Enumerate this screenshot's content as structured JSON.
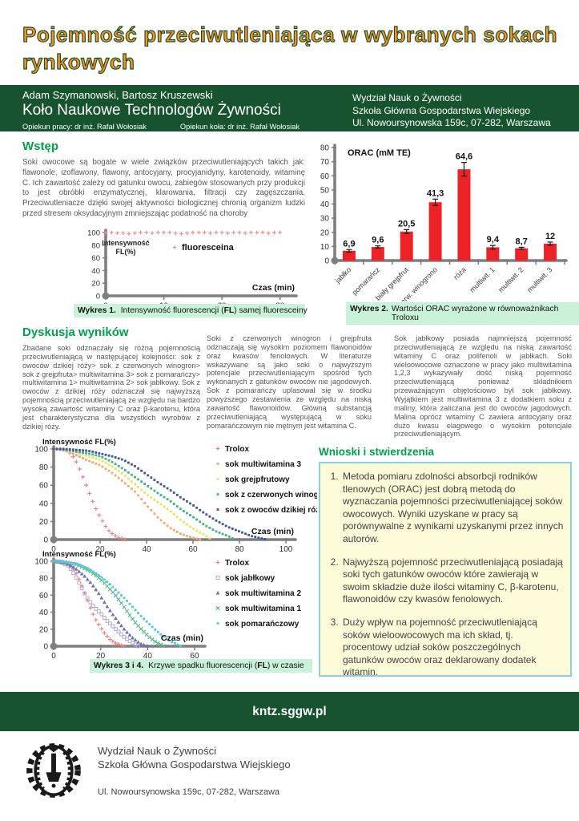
{
  "title": {
    "line1_words": [
      "Pojemność",
      "przeciwutleniająca",
      "w",
      "wybranych",
      "sokach"
    ],
    "line2": "rynkowych"
  },
  "header": {
    "authors": "Adam Szymanowski, Bartosz Kruszewski",
    "club": "Koło Naukowe Technologów Żywności",
    "supervisor1": "Opiekun pracy: dr inż. Rafał Wołosiak",
    "supervisor2": "Opiekun koła: dr inż. Rafał Wołosiak",
    "faculty": "Wydział Nauk o Żywności",
    "university": "Szkoła Główna Gospodarstwa Wiejskiego",
    "address": "Ul. Nowoursynowska 159c, 07-282, Warszawa"
  },
  "wstep": {
    "heading": "Wstęp",
    "text": "Soki owocowe są bogate w wiele związków przeciwutleniających takich jak: flawonole, izoflawony, flawony, antocyjany, procyjanidyny, karotenoidy, witaminę C. Ich zawartość zależy od gatunku owocu, zabiegów stosowanych przy produkcji to jest obróbki enzymatycznej, klarowania, filtracji czy zagęszczania. Przeciwutleniacze dzięki swojej aktywności biologicznej chronią organizm ludzki przed stresem oksydacyjnym zmniejszając podatność na choroby"
  },
  "dyskusja": {
    "heading": "Dyskusja wyników",
    "col1": "Zbadane soki odznaczały się różną pojemnością przeciwutleniającą w następującej kolejności: sok z owoców dzikiej róży> sok z czerwonych winogron> sok z grejpfruta> multiwitamina 3> sok z pomarańczy> multiwitamina 1> multiwitamina 2> sok jabłkowy. Sok z owoców z dzikiej róży odznaczał się najwyższą pojemnością przeciwutleniającą ze względu na bardzo wysoką zawartość witaminy C oraz β-karotenu, która jest charakterystyczna dla wszystkich wyrobów z dzikiej róży.",
    "col2": "Soki z czerwonych winogron i grejpfruta odznaczają się wysokim poziomem flawonoidów oraz kwasów fenolowych. W literaturze wskazywane są jako soki o najwyższym potencjale przeciwutleniającym spośród tych wykonanych z gatunków owoców nie jagodowych. Sok z pomarańczy uplasował się w środku powyższego zestawienia ze względu na niską zawartość flawonoidów. Główną substancją przeciwutleniającą występującą w soku pomarańczowym nie mętnym jest witamina C.",
    "col3": "Sok jabłkowy posiada najmniejszą pojemność przeciwutleniającą ze względu na niską zawartość witaminy C oraz polifenoli w jabłkach. Soki wieloowocowe oznaczone w pracy jako multiwitamina 1,2,3 wykazywały dość niską pojemność przeciwutleniającą ponieważ składnikiem przeważającym objętościowo był sok jabłkowy. Wyjątkiem jest multiwitamina 3 z dodatkiem soku z maliny, która zaliczana jest do owoców jagodowych. Malina oprócz witaminy C zawiera antocyjany oraz dużo kwasu elagowego o wysokim potencjale przeciwutleniającym."
  },
  "wnioski": {
    "heading": "Wnioski i stwierdzenia",
    "items": [
      "Metoda pomiaru zdolności absorbcji rodników tlenowych (ORAC) jest dobrą metodą do wyznaczania pojemności przeciwutleniającej soków owocowych. Wyniki uzyskane w pracy są porównywalne z wynikami uzyskanymi przez innych autorów.",
      "Najwyższą pojemność przeciwutleniającą posiadają soki tych gatunków owoców które zawierają w swoim składzie duże ilości witaminy C, β-karotenu, flawonoidów czy kwasów fenolowych.",
      "Duży wpływ na pojemność przeciwutleniającą soków wieloowocowych ma ich skład, tj. procentowy udział soków poszczególnych gatunków owoców oraz deklarowany dodatek witamin."
    ]
  },
  "captions": {
    "c1_bold": "Wykres 1.",
    "c1_mid": "Intensywność fluorescencji (",
    "c1_fl": "FL",
    "c1_end": ") samej fluoresceiny",
    "c2_bold": "Wykres 2.",
    "c2_rest": "Wartości ORAC wyrażone w równoważnikach Troloxu",
    "c34_bold": "Wykres 3 i 4.",
    "c34_mid": "Krzywe spadku fluorescencji (",
    "c34_fl": "FL",
    "c34_end": ") w czasie"
  },
  "footer": {
    "url": "kntz.sggw.pl",
    "faculty": "Wydział Nauk o Żywności",
    "university": "Szkoła Główna Gospodarstwa Wiejskiego",
    "address": "Ul. Nowoursynowska 159c, 07-282, Warszawa"
  },
  "colors": {
    "band_green": "#17532F",
    "heading_green": "#00A14B",
    "title_orange": "#F79420",
    "caption_green": "#C9F2D9",
    "box_yellow": "#FDFBD8",
    "box_border_cyan": "#8BD1DC",
    "bar_red": "#EC2227"
  },
  "chart_data": [
    {
      "type": "line",
      "xlabel": "Czas (min)",
      "ylabel_lines": [
        "Intensywność",
        "FL(%)"
      ],
      "xlim": [
        0,
        35
      ],
      "ylim": [
        0,
        100
      ],
      "xticks": [
        0,
        10,
        20,
        30
      ],
      "yticks": [
        0,
        20,
        40,
        60,
        80,
        100
      ],
      "tickfs": 9.5,
      "legendfs": 11,
      "series": [
        {
          "name": "fluoresceina",
          "color": "#F28C8C",
          "marker": "plus",
          "x": [
            0,
            1,
            2,
            3,
            4,
            5,
            6,
            7,
            8,
            9,
            10,
            11,
            12,
            13,
            14,
            15,
            16,
            17,
            18,
            19,
            20,
            21,
            22,
            23,
            24,
            25,
            26,
            27,
            28,
            29,
            30
          ],
          "y": [
            100,
            100,
            99,
            99,
            98,
            99,
            100,
            100,
            99,
            100,
            100,
            100,
            99,
            98,
            99,
            100,
            100,
            100,
            99,
            100,
            100,
            99,
            100,
            100,
            99,
            100,
            100,
            100,
            99,
            100,
            100
          ]
        }
      ]
    },
    {
      "type": "bar",
      "ylabel_inside": "ORAC (mM TE)",
      "ylim": [
        0,
        80
      ],
      "yticks": [
        0,
        10,
        20,
        30,
        40,
        50,
        60,
        70,
        80
      ],
      "categories": [
        "jabłko",
        "pomarańcz",
        "biały grejpfrut",
        "czerw. winogrono",
        "róża",
        "multiwit. 1",
        "multiwit. 2",
        "multiwit. 3"
      ],
      "values": [
        6.9,
        9.6,
        20.5,
        41.3,
        64.6,
        9.4,
        8.7,
        12
      ],
      "value_labels": [
        "6,9",
        "9,6",
        "20,5",
        "41,3",
        "64,6",
        "9,4",
        "8,7",
        "12"
      ],
      "errors": [
        0.9,
        0.8,
        1.4,
        2.2,
        4.8,
        1.3,
        0.7,
        1.1
      ],
      "bar_color": "#EC2227"
    },
    {
      "type": "line",
      "xlabel": "Czas (min)",
      "ylabel": "Intensywność FL(%)",
      "xlim": [
        0,
        100
      ],
      "ylim": [
        0,
        100
      ],
      "xticks": [
        0,
        20,
        40,
        60,
        80,
        100
      ],
      "yticks": [
        0,
        20,
        40,
        60,
        80,
        100
      ],
      "series": [
        {
          "name": "Trolox",
          "color": "#F08080",
          "marker": "plus",
          "x": [
            0,
            2,
            4,
            6,
            8,
            10,
            12,
            14,
            16,
            18,
            20,
            22,
            24,
            26,
            28,
            30,
            31
          ],
          "y": [
            100,
            100,
            100,
            98,
            93,
            85,
            73,
            60,
            47,
            35,
            25,
            16,
            9,
            5,
            2,
            1,
            0
          ]
        },
        {
          "name": "sok multiwitamina 3",
          "color": "#F6A96D",
          "marker": "dot",
          "x": [
            0,
            5,
            10,
            15,
            20,
            25,
            30,
            35,
            40,
            45,
            50,
            55,
            60,
            63
          ],
          "y": [
            100,
            98,
            93,
            87,
            82,
            74,
            64,
            53,
            38,
            24,
            13,
            6,
            2,
            0
          ]
        },
        {
          "name": "sok grejpfrutowy",
          "color": "#F2E05A",
          "marker": "dot",
          "x": [
            0,
            5,
            10,
            15,
            20,
            25,
            30,
            35,
            40,
            45,
            50,
            55,
            60,
            65,
            68
          ],
          "y": [
            100,
            99,
            96,
            92,
            88,
            81,
            72,
            61,
            50,
            41,
            32,
            21,
            12,
            5,
            0
          ]
        },
        {
          "name": "sok z czerwonych winogron",
          "color": "#41B380",
          "marker": "dot",
          "x": [
            0,
            5,
            10,
            15,
            20,
            25,
            30,
            35,
            40,
            45,
            50,
            55,
            60,
            65,
            70,
            75,
            78
          ],
          "y": [
            100,
            99,
            97,
            95,
            92,
            86,
            78,
            69,
            60,
            51,
            43,
            33,
            25,
            16,
            9,
            4,
            0
          ]
        },
        {
          "name": "sok z owoców dzikiej róży",
          "color": "#3C53A4",
          "marker": "dot",
          "x": [
            0,
            5,
            10,
            15,
            20,
            25,
            30,
            35,
            40,
            45,
            50,
            55,
            60,
            65,
            70,
            75,
            80,
            85,
            90,
            92
          ],
          "y": [
            100,
            100,
            99,
            98,
            95,
            92,
            88,
            81,
            72,
            63,
            55,
            46,
            38,
            29,
            21,
            14,
            9,
            4,
            1,
            0
          ]
        }
      ]
    },
    {
      "type": "line",
      "xlabel": "Czas (min)",
      "ylabel": "Intensywność FL(%)",
      "xlim": [
        0,
        60
      ],
      "ylim": [
        0,
        100
      ],
      "xticks": [
        0,
        20,
        40,
        60
      ],
      "yticks": [
        0,
        20,
        40,
        60,
        80,
        100
      ],
      "series": [
        {
          "name": "Trolox",
          "color": "#F08080",
          "marker": "plus",
          "x": [
            0,
            2,
            4,
            6,
            8,
            10,
            12,
            14,
            16,
            18,
            20,
            22,
            24,
            26,
            28,
            30
          ],
          "y": [
            100,
            100,
            99,
            97,
            92,
            84,
            71,
            57,
            42,
            31,
            22,
            14,
            8,
            4,
            2,
            0
          ]
        },
        {
          "name": "sok jabłkowy",
          "color": "#B3A9CC",
          "marker": "square-open",
          "x": [
            0,
            3,
            6,
            8,
            10,
            12,
            14,
            16,
            18,
            20,
            22,
            25,
            28,
            30,
            33,
            36
          ],
          "y": [
            100,
            99,
            95,
            88,
            79,
            68,
            58,
            50,
            44,
            39,
            32,
            24,
            16,
            11,
            5,
            0
          ]
        },
        {
          "name": "sok multiwitamina 2",
          "color": "#6F6FB8",
          "marker": "triangle",
          "x": [
            0,
            5,
            8,
            10,
            13,
            16,
            19,
            22,
            25,
            28,
            31,
            34,
            37,
            40
          ],
          "y": [
            100,
            98,
            94,
            90,
            83,
            74,
            63,
            50,
            38,
            27,
            17,
            9,
            3,
            0
          ]
        },
        {
          "name": "sok multiwitamina 1",
          "color": "#55B98A",
          "marker": "x",
          "x": [
            0,
            5,
            10,
            15,
            20,
            23,
            26,
            29,
            32,
            35,
            38,
            41,
            44,
            47
          ],
          "y": [
            100,
            99,
            96,
            89,
            79,
            70,
            61,
            50,
            38,
            27,
            18,
            10,
            4,
            0
          ]
        },
        {
          "name": "sok pomarańczowy",
          "color": "#4FC8DF",
          "marker": "dot",
          "x": [
            0,
            5,
            10,
            15,
            20,
            24,
            28,
            31,
            34,
            37,
            40,
            43,
            46,
            49,
            52,
            54
          ],
          "y": [
            100,
            99,
            97,
            91,
            82,
            73,
            62,
            54,
            45,
            36,
            28,
            20,
            13,
            7,
            3,
            0
          ]
        }
      ]
    }
  ]
}
